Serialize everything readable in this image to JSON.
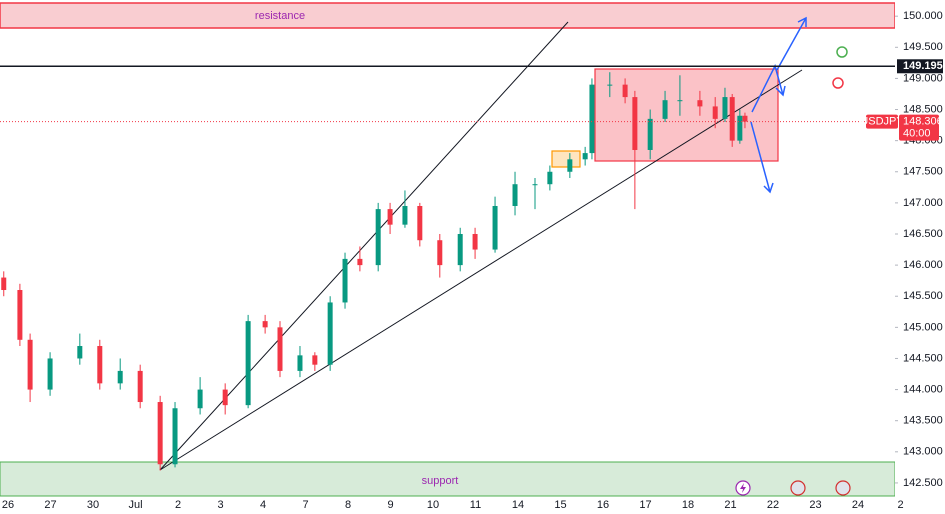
{
  "chart_data": {
    "type": "candlestick",
    "symbol": "USDJPY",
    "countdown": "40:00",
    "last": 148.306,
    "hline": 149.195,
    "zones": {
      "resistance": "resistance",
      "support": "support"
    },
    "up_color": "#089981",
    "down_color": "#f23645",
    "categories": [
      "26",
      "27",
      "30",
      "Jul",
      "2",
      "3",
      "4",
      "7",
      "8",
      "9",
      "10",
      "11",
      "14",
      "15",
      "16",
      "17",
      "18",
      "21",
      "22",
      "23",
      "24",
      "2"
    ],
    "ylim": [
      142.29,
      150.26
    ],
    "yticks": [
      {
        "value": 142.5,
        "label": "142.500"
      },
      {
        "value": 143,
        "label": "143.000"
      },
      {
        "value": 143.5,
        "label": "143.500"
      },
      {
        "value": 144,
        "label": "144.000"
      },
      {
        "value": 144.5,
        "label": "144.500"
      },
      {
        "value": 145,
        "label": "145.000"
      },
      {
        "value": 145.5,
        "label": "145.500"
      },
      {
        "value": 146,
        "label": "146.000"
      },
      {
        "value": 146.5,
        "label": "146.500"
      },
      {
        "value": 147,
        "label": "147.000"
      },
      {
        "value": 147.5,
        "label": "147.500"
      },
      {
        "value": 148,
        "label": "148.000"
      },
      {
        "value": 148.5,
        "label": "148.500"
      },
      {
        "value": 149,
        "label": "149.000"
      },
      {
        "value": 149.5,
        "label": "149.500"
      },
      {
        "value": 150,
        "label": "150.000"
      }
    ],
    "x": [
      -0.1,
      0.28,
      0.52,
      0.99,
      1.69,
      2.16,
      2.64,
      3.11,
      3.58,
      3.93,
      4.52,
      5.11,
      5.65,
      6.05,
      6.4,
      6.87,
      7.22,
      7.58,
      7.93,
      8.28,
      8.71,
      8.99,
      9.34,
      9.69,
      10.16,
      10.64,
      10.99,
      11.46,
      11.93,
      12.4,
      12.75,
      13.22,
      13.58,
      13.74,
      14.16,
      14.52,
      14.75,
      15.11,
      15.46,
      15.81,
      16.28,
      16.64,
      16.87,
      17.04,
      17.22,
      17.34
    ],
    "open": [
      145.8,
      145.6,
      144.8,
      144.0,
      144.5,
      144.7,
      144.1,
      144.3,
      143.8,
      142.8,
      143.7,
      144.0,
      143.75,
      145.1,
      145.0,
      144.3,
      144.55,
      144.4,
      145.4,
      146.1,
      146.0,
      146.9,
      146.65,
      146.95,
      146.4,
      146.0,
      146.5,
      146.25,
      146.95,
      147.3,
      147.3,
      147.5,
      147.7,
      147.8,
      148.9,
      148.9,
      148.7,
      147.85,
      148.35,
      148.65,
      148.65,
      148.55,
      148.35,
      148.7,
      148.0,
      148.4
    ],
    "high": [
      145.9,
      145.7,
      144.9,
      144.6,
      144.9,
      144.8,
      144.5,
      144.4,
      143.9,
      143.8,
      144.2,
      144.1,
      145.2,
      145.2,
      145.1,
      144.7,
      144.6,
      145.5,
      146.2,
      146.3,
      147.0,
      147.0,
      147.2,
      147.0,
      146.5,
      146.6,
      146.6,
      147.1,
      147.5,
      147.4,
      147.6,
      147.8,
      147.9,
      149.0,
      149.1,
      149.0,
      148.8,
      148.5,
      148.8,
      149.05,
      148.8,
      148.7,
      148.85,
      148.75,
      148.5,
      148.45
    ],
    "low": [
      145.5,
      144.7,
      143.8,
      143.9,
      144.4,
      144.0,
      144.0,
      143.7,
      142.7,
      142.75,
      143.6,
      143.6,
      143.7,
      144.9,
      144.2,
      144.2,
      144.3,
      144.3,
      145.3,
      145.9,
      145.9,
      146.5,
      146.6,
      146.3,
      145.8,
      145.9,
      146.1,
      146.2,
      146.8,
      146.9,
      147.2,
      147.4,
      147.6,
      147.7,
      148.7,
      148.6,
      146.9,
      147.7,
      148.3,
      148.4,
      148.4,
      148.2,
      148.3,
      147.9,
      147.95,
      148.2
    ],
    "close": [
      145.6,
      144.8,
      144.0,
      144.5,
      144.7,
      144.1,
      144.3,
      143.8,
      142.8,
      143.7,
      144.0,
      143.75,
      145.1,
      145.0,
      144.3,
      144.55,
      144.4,
      145.4,
      146.1,
      146.0,
      146.9,
      146.65,
      146.95,
      146.4,
      146.0,
      146.5,
      146.25,
      146.95,
      147.3,
      147.3,
      147.5,
      147.7,
      147.8,
      148.9,
      148.9,
      148.7,
      147.85,
      148.35,
      148.65,
      148.65,
      148.55,
      148.35,
      148.7,
      148.0,
      148.4,
      148.306
    ]
  }
}
